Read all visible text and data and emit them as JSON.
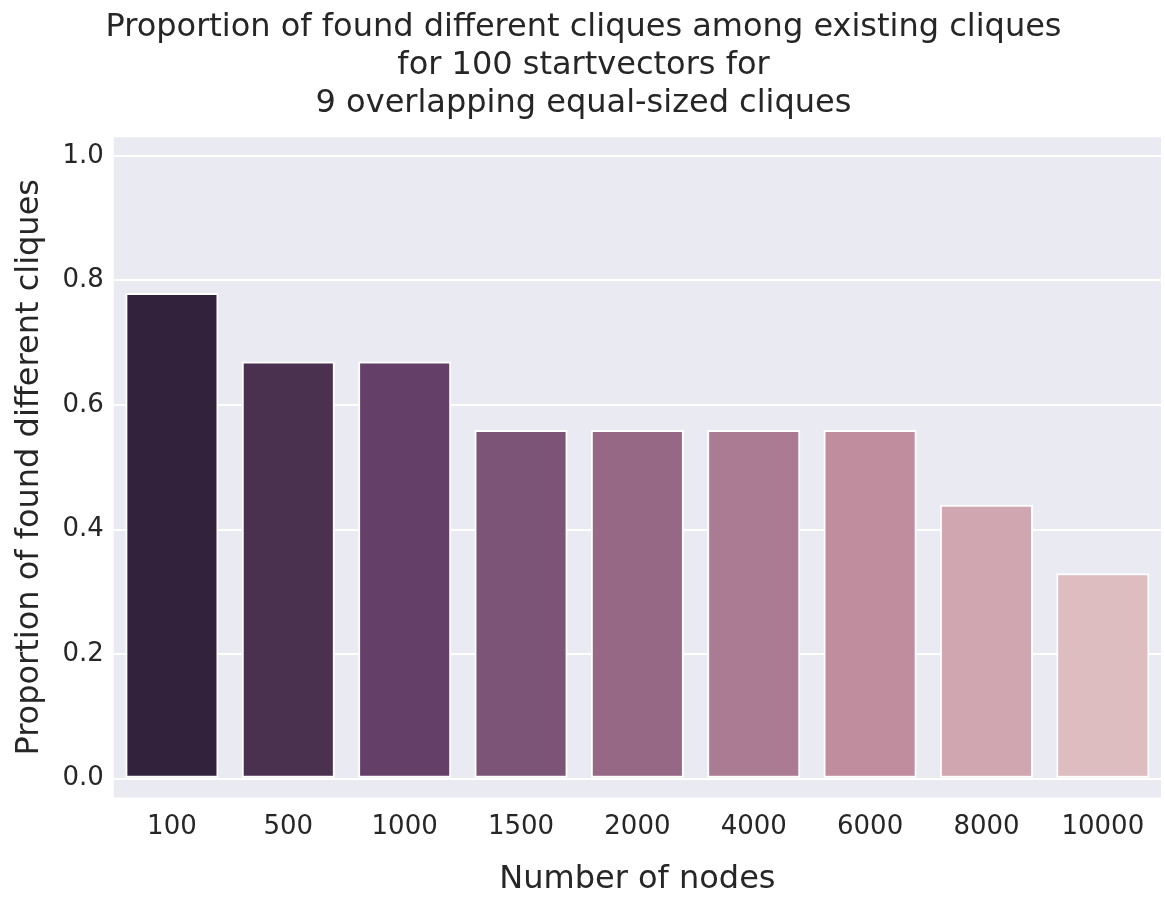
{
  "chart_data": {
    "type": "bar",
    "title": "Proportion of found different cliques among existing cliques\nfor 100 startvectors for\n9 overlapping equal-sized cliques",
    "xlabel": "Number of nodes",
    "ylabel": "Proportion of found different cliques",
    "categories": [
      "100",
      "500",
      "1000",
      "1500",
      "2000",
      "4000",
      "6000",
      "8000",
      "10000"
    ],
    "values": [
      0.78,
      0.67,
      0.67,
      0.56,
      0.56,
      0.56,
      0.56,
      0.44,
      0.33
    ],
    "colors": [
      "#32223b",
      "#4a3150",
      "#644068",
      "#7c5478",
      "#976886",
      "#ab7a93",
      "#c08d9e",
      "#d0a6b0",
      "#ddbdc0"
    ],
    "ylim": [
      -0.03,
      1.03
    ],
    "yticks": [
      {
        "value": 0,
        "label": "0.0"
      },
      0.2,
      0.4,
      0.6,
      0.8,
      {
        "value": 1,
        "label": "1.0"
      }
    ],
    "grid": "y",
    "legend": false
  }
}
